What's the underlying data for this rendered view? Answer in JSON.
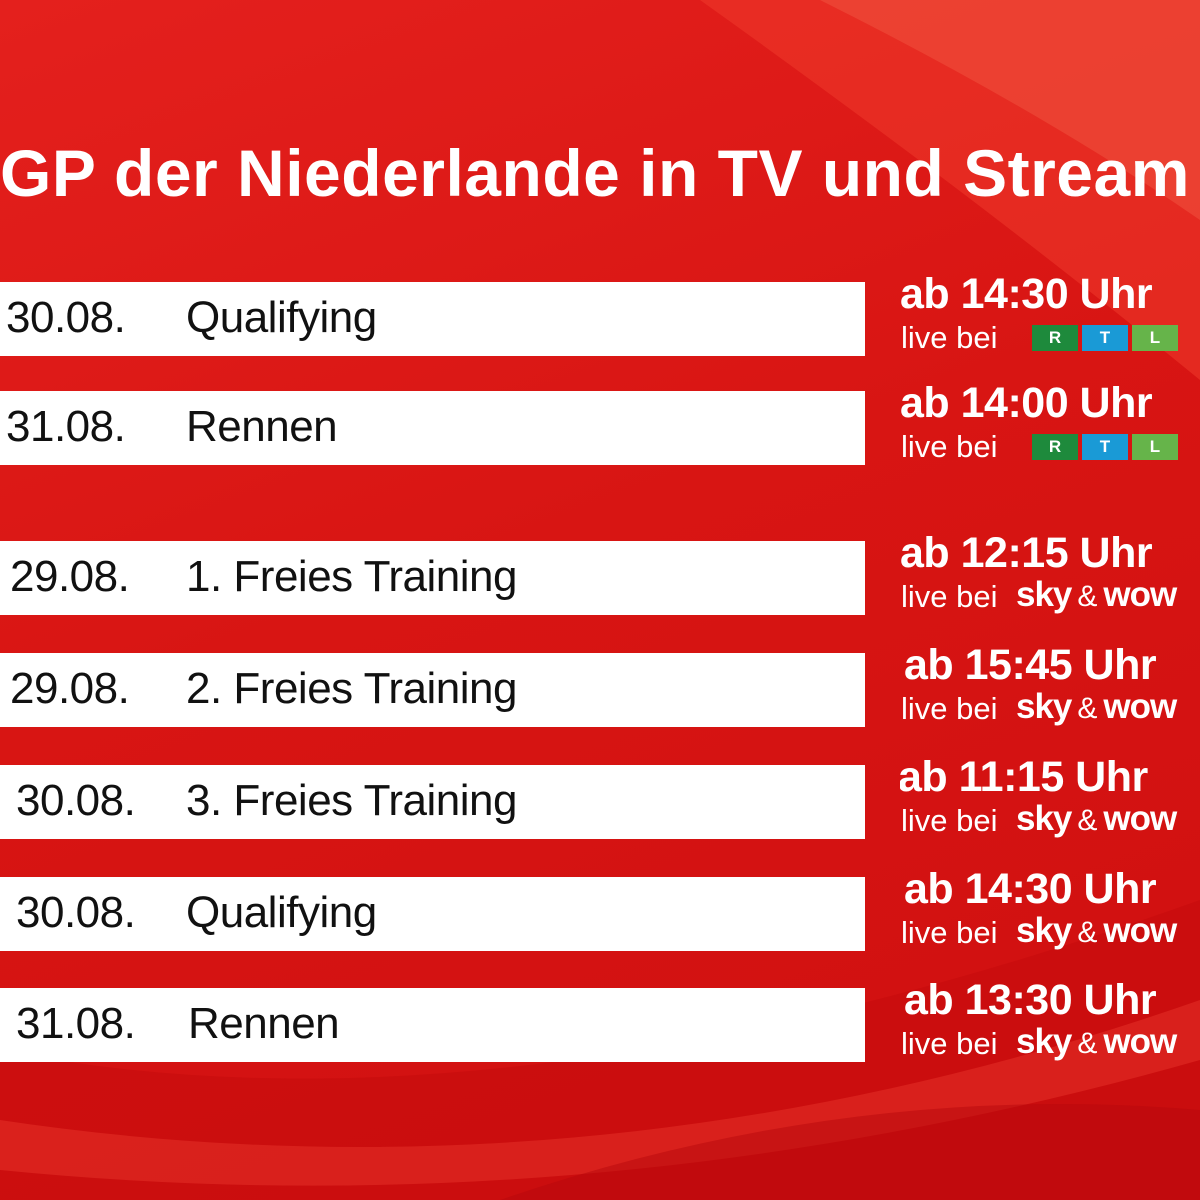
{
  "title": "GP der Niederlande in TV und Stream",
  "colors": {
    "background": "#d81513",
    "bar": "#ffffff",
    "rtl_r": "#1e8a3c",
    "rtl_t": "#1a9ad6",
    "rtl_l": "#66b44a"
  },
  "rtl_block": [
    {
      "date": "30.08.",
      "event": "Qualifying",
      "time": "ab 14:30 Uhr",
      "live": "live bei",
      "channel": "RTL"
    },
    {
      "date": "31.08.",
      "event": "Rennen",
      "time": "ab 14:00 Uhr",
      "live": "live bei",
      "channel": "RTL"
    }
  ],
  "sky_block": [
    {
      "date": "29.08.",
      "event": "1. Freies Training",
      "time": "ab 12:15 Uhr",
      "live": "live bei",
      "sky": "sky",
      "amp": "&",
      "wow": "wow"
    },
    {
      "date": "29.08.",
      "event": "2. Freies Training",
      "time": "ab 15:45 Uhr",
      "live": "live bei",
      "sky": "sky",
      "amp": "&",
      "wow": "wow"
    },
    {
      "date": "30.08.",
      "event": "3. Freies Training",
      "time": "ab 11:15 Uhr",
      "live": "live bei",
      "sky": "sky",
      "amp": "&",
      "wow": "wow"
    },
    {
      "date": "30.08.",
      "event": "Qualifying",
      "time": "ab 14:30 Uhr",
      "live": "live bei",
      "sky": "sky",
      "amp": "&",
      "wow": "wow"
    },
    {
      "date": "31.08.",
      "event": "Rennen",
      "time": "ab 13:30 Uhr",
      "live": "live bei",
      "sky": "sky",
      "amp": "&",
      "wow": "wow"
    }
  ],
  "rtl_logo": {
    "r": "R",
    "t": "T",
    "l": "L"
  }
}
